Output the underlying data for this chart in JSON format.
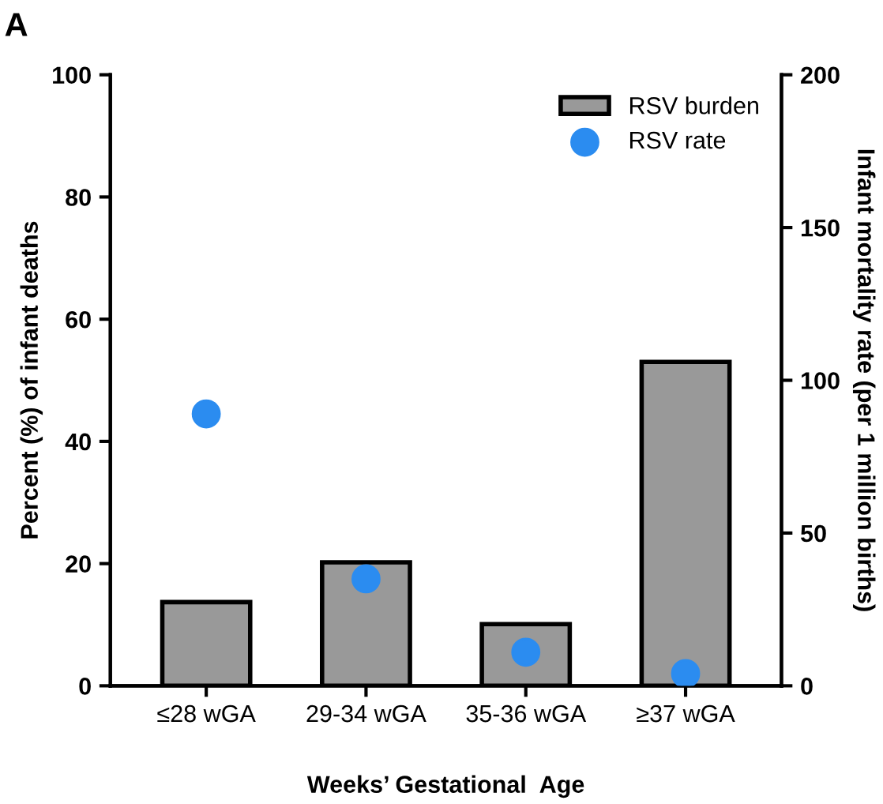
{
  "chart_data": {
    "type": "bar",
    "xlabel": "Weeks’ Gestational  Age",
    "ylabel": "Percent (%) of infant deaths",
    "y2label": "Infant mortality rate (per 1 million births)",
    "annotations": [
      "A"
    ],
    "categories": [
      "≤28 wGA",
      "29-34 wGA",
      "35-36 wGA",
      "≥37 wGA"
    ],
    "series": [
      {
        "name": "RSV burden",
        "color": "#999999",
        "values": [
          13.7,
          20.2,
          10.1,
          53.0
        ]
      },
      {
        "name": "RSV rate",
        "type": "scatter",
        "axis": "y2",
        "color": "#2b8cf0",
        "marker": "circle",
        "values": [
          89,
          35,
          11,
          4
        ]
      }
    ],
    "ylim": [
      0,
      100
    ],
    "yticks": [
      0,
      20,
      40,
      60,
      80,
      100
    ],
    "y2lim": [
      0,
      200
    ],
    "y2ticks": [
      0,
      50,
      100,
      150,
      200
    ],
    "grid": false,
    "legend": "top right"
  }
}
